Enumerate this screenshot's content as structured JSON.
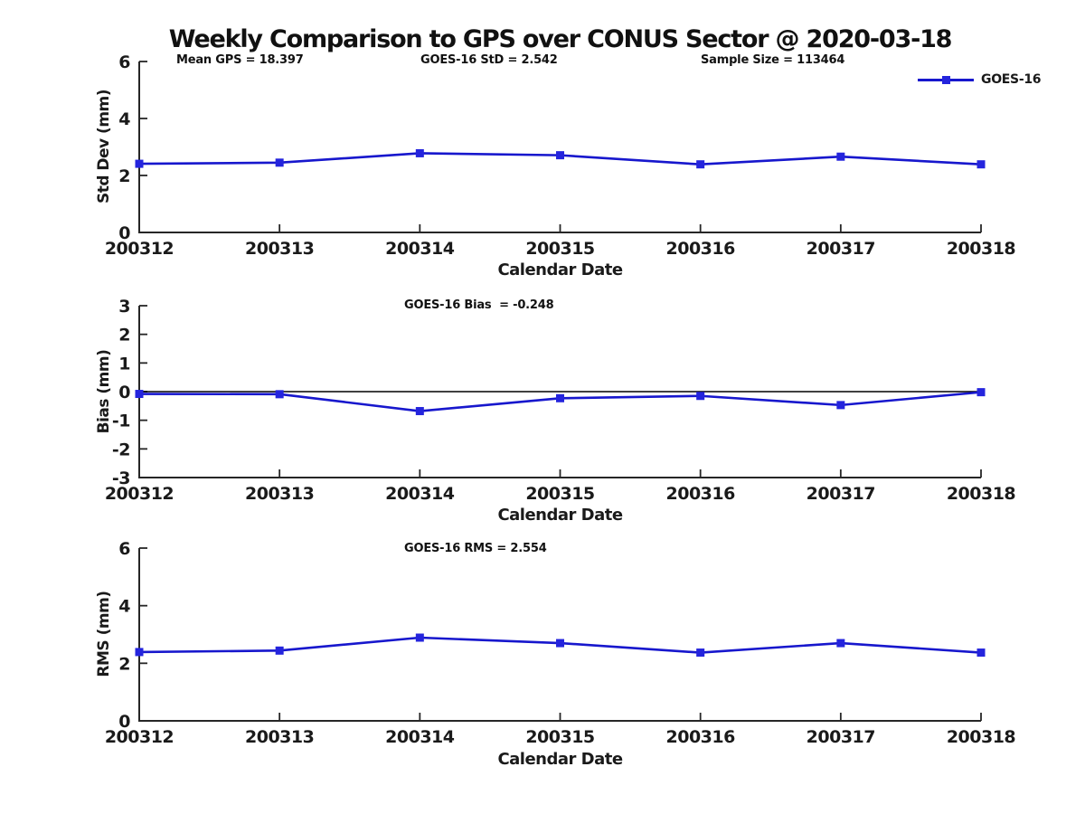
{
  "title": "Weekly Comparison to GPS over CONUS Sector @ 2020-03-18",
  "annotations": {
    "mean_gps": "Mean GPS = 18.397",
    "std": "GOES-16 StD = 2.542",
    "sample_size": "Sample Size = 113464",
    "bias": "GOES-16 Bias  = -0.248",
    "rms": "GOES-16 RMS = 2.554"
  },
  "legend": {
    "label": "GOES-16",
    "position": "top-right"
  },
  "colors": {
    "line": "#1717cd",
    "marker": "#2424dd",
    "axis": "#262626",
    "zero_line": "#000000",
    "text": "#1a1a1a"
  },
  "chart_data": [
    {
      "type": "line",
      "categories": [
        "200312",
        "200313",
        "200314",
        "200315",
        "200316",
        "200317",
        "200318"
      ],
      "series": [
        {
          "name": "GOES-16",
          "values": [
            2.41,
            2.45,
            2.78,
            2.71,
            2.39,
            2.66,
            2.39
          ]
        }
      ],
      "xlabel": "Calendar Date",
      "ylabel": "Std Dev (mm)",
      "ylim": [
        0,
        6
      ],
      "yticks": [
        0,
        2,
        4,
        6
      ],
      "grid": false,
      "annotation": "GOES-16 StD = 2.542"
    },
    {
      "type": "line",
      "categories": [
        "200312",
        "200313",
        "200314",
        "200315",
        "200316",
        "200317",
        "200318"
      ],
      "series": [
        {
          "name": "GOES-16",
          "values": [
            -0.08,
            -0.09,
            -0.68,
            -0.23,
            -0.15,
            -0.47,
            -0.02
          ]
        }
      ],
      "xlabel": "Calendar Date",
      "ylabel": "Bias (mm)",
      "ylim": [
        -3,
        3
      ],
      "yticks": [
        -3,
        -2,
        -1,
        0,
        1,
        2,
        3
      ],
      "zero_line": true,
      "grid": false,
      "annotation": "GOES-16 Bias  = -0.248"
    },
    {
      "type": "line",
      "categories": [
        "200312",
        "200313",
        "200314",
        "200315",
        "200316",
        "200317",
        "200318"
      ],
      "series": [
        {
          "name": "GOES-16",
          "values": [
            2.39,
            2.44,
            2.89,
            2.7,
            2.37,
            2.7,
            2.37
          ]
        }
      ],
      "xlabel": "Calendar Date",
      "ylabel": "RMS (mm)",
      "ylim": [
        0,
        6
      ],
      "yticks": [
        0,
        2,
        4,
        6
      ],
      "grid": false,
      "annotation": "GOES-16 RMS = 2.554"
    }
  ]
}
